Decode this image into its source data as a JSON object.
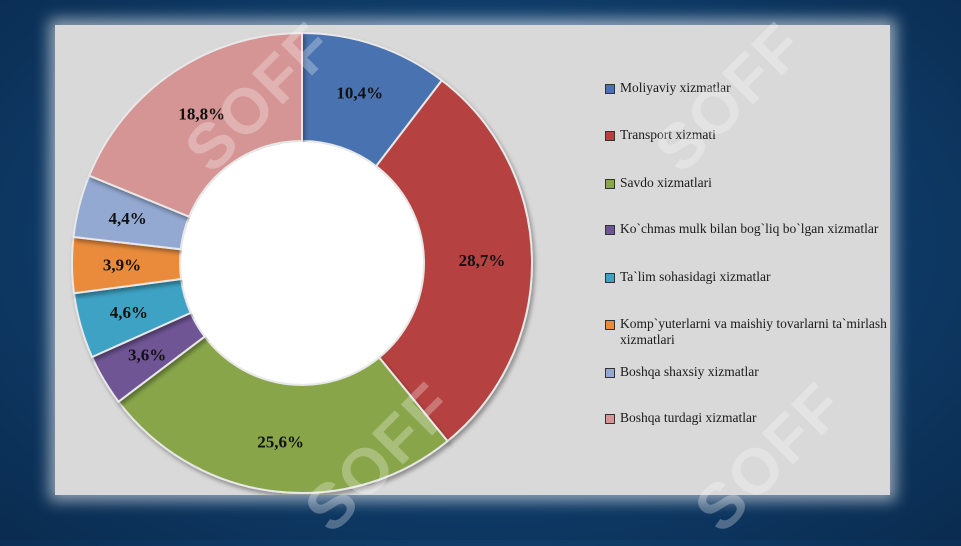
{
  "chart_data": {
    "type": "pie",
    "donut": true,
    "legend_position": "right",
    "colors": [
      "#4a72b0",
      "#b5423f",
      "#88a64a",
      "#6f5495",
      "#3ea2c4",
      "#e98b3a",
      "#93a9d2",
      "#d49594"
    ],
    "slices": [
      {
        "label": "Moliyaviy xizmatlar",
        "value": 10.4,
        "display": "10,4%"
      },
      {
        "label": "Transport xizmati",
        "value": 28.7,
        "display": "28,7%"
      },
      {
        "label": "Savdo xizmatlari",
        "value": 25.6,
        "display": "25,6%"
      },
      {
        "label": "Ko`chmas mulk bilan bog`liq bo`lgan xizmatlar",
        "value": 3.6,
        "display": "3,6%"
      },
      {
        "label": "Ta`lim sohasidagi xizmatlar",
        "value": 4.6,
        "display": "4,6%"
      },
      {
        "label": "Komp`yuterlarni va maishiy tovarlarni ta`mirlash xizmatlari",
        "value": 3.9,
        "display": "3,9%"
      },
      {
        "label": "Boshqa shaxsiy xizmatlar",
        "value": 4.4,
        "display": "4,4%"
      },
      {
        "label": "Boshqa turdagi xizmatlar",
        "value": 18.8,
        "display": "18,8%"
      }
    ]
  },
  "legend": {
    "items": [
      "Moliyaviy xizmatlar",
      "Transport xizmati",
      "Savdo xizmatlari",
      "Ko`chmas mulk bilan bog`liq bo`lgan xizmatlar",
      "Ta`lim sohasidagi xizmatlar",
      "Komp`yuterlarni va maishiy tovarlarni ta`mirlash xizmatlari",
      "Boshqa shaxsiy xizmatlar",
      "Boshqa turdagi xizmatlar"
    ]
  },
  "watermark": {
    "text": "SOFF"
  }
}
